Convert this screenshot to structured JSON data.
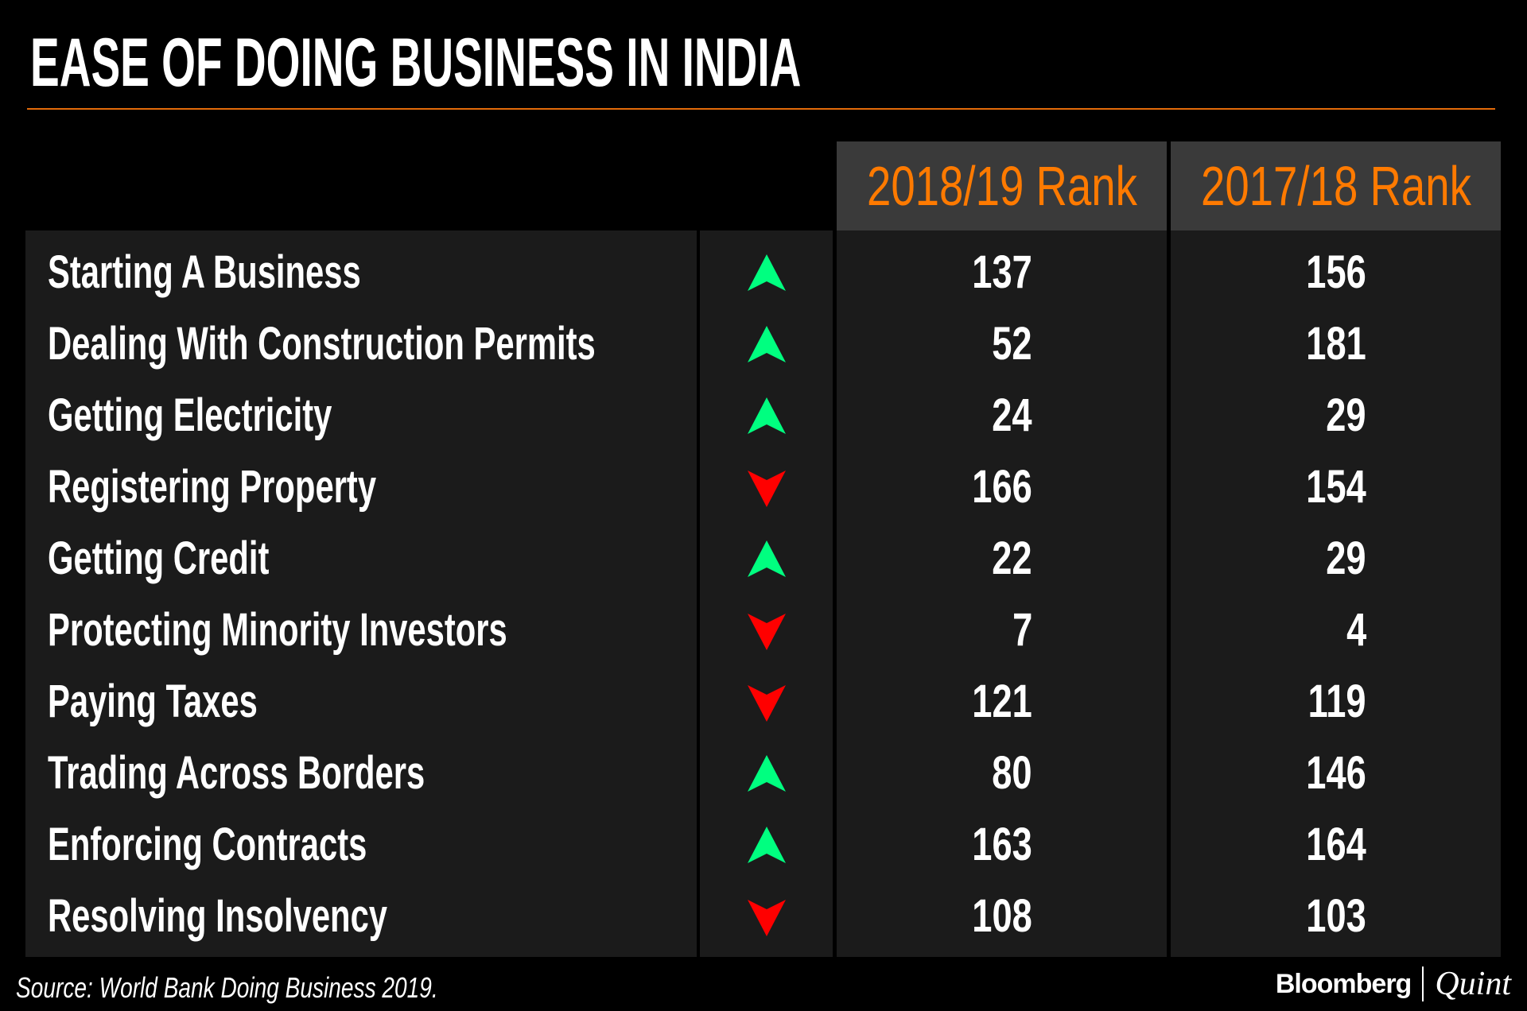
{
  "title": "EASE OF DOING BUSINESS IN INDIA",
  "colors": {
    "accent": "#ff7a00",
    "up": "#00ff80",
    "down": "#ff0000",
    "header_bg": "#3a3a3a",
    "body_bg": "#1b1b1b"
  },
  "chart_data": {
    "type": "table",
    "columns": [
      "",
      "",
      "2018/19 Rank",
      "2017/18 Rank"
    ],
    "rows": [
      {
        "indicator": "Starting A Business",
        "trend": "up",
        "rank_2018_19": "137",
        "rank_2017_18": "156"
      },
      {
        "indicator": "Dealing With Construction Permits",
        "trend": "up",
        "rank_2018_19": "52",
        "rank_2017_18": "181"
      },
      {
        "indicator": "Getting Electricity",
        "trend": "up",
        "rank_2018_19": "24",
        "rank_2017_18": "29"
      },
      {
        "indicator": "Registering Property",
        "trend": "down",
        "rank_2018_19": "166",
        "rank_2017_18": "154"
      },
      {
        "indicator": "Getting Credit",
        "trend": "up",
        "rank_2018_19": "22",
        "rank_2017_18": "29"
      },
      {
        "indicator": "Protecting Minority Investors",
        "trend": "down",
        "rank_2018_19": "7",
        "rank_2017_18": "4"
      },
      {
        "indicator": "Paying Taxes",
        "trend": "down",
        "rank_2018_19": "121",
        "rank_2017_18": "119"
      },
      {
        "indicator": "Trading Across Borders",
        "trend": "up",
        "rank_2018_19": "80",
        "rank_2017_18": "146"
      },
      {
        "indicator": "Enforcing Contracts",
        "trend": "up",
        "rank_2018_19": "163",
        "rank_2017_18": "164"
      },
      {
        "indicator": "Resolving Insolvency",
        "trend": "down",
        "rank_2018_19": "108",
        "rank_2017_18": "103"
      }
    ]
  },
  "source": "Source: World Bank Doing Business 2019.",
  "logo": {
    "left": "Bloomberg",
    "right": "Quint"
  }
}
